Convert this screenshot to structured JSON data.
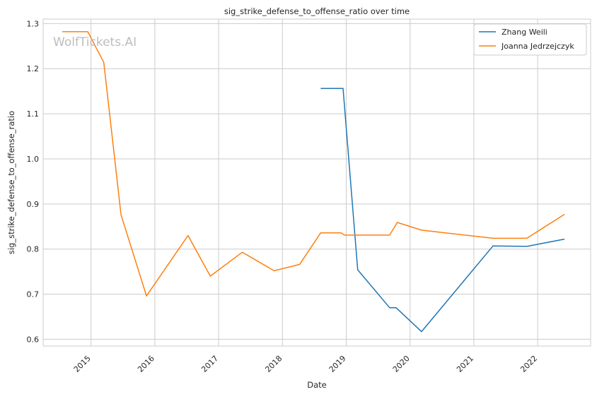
{
  "chart_data": {
    "type": "line",
    "title": "sig_strike_defense_to_offense_ratio over time",
    "xlabel": "Date",
    "ylabel": "sig_strike_defense_to_offense_ratio",
    "watermark": "WolfTickets.AI",
    "xlim": [
      2014.25,
      2022.83
    ],
    "ylim": [
      0.585,
      1.31
    ],
    "xticks": [
      2015,
      2016,
      2017,
      2018,
      2019,
      2020,
      2021,
      2022
    ],
    "yticks": [
      0.6,
      0.7,
      0.8,
      0.9,
      1.0,
      1.1,
      1.2,
      1.3
    ],
    "ytick_labels": [
      "0.6",
      "0.7",
      "0.8",
      "0.9",
      "1.0",
      "1.1",
      "1.2",
      "1.3"
    ],
    "grid": true,
    "legend_position": "top-right",
    "series": [
      {
        "name": "Zhang Weili",
        "color": "#1f77b4",
        "x": [
          2018.6,
          2018.95,
          2019.18,
          2019.68,
          2019.78,
          2020.18,
          2021.3,
          2021.83,
          2022.42
        ],
        "y": [
          1.156,
          1.156,
          0.754,
          0.67,
          0.67,
          0.617,
          0.807,
          0.806,
          0.822
        ]
      },
      {
        "name": "Joanna Jedrzejczyk",
        "color": "#ff7f0e",
        "x": [
          2014.55,
          2014.95,
          2015.2,
          2015.47,
          2015.87,
          2016.52,
          2016.87,
          2017.37,
          2017.87,
          2018.27,
          2018.6,
          2018.92,
          2018.97,
          2019.68,
          2019.8,
          2020.18,
          2021.3,
          2021.83,
          2022.42
        ],
        "y": [
          1.282,
          1.282,
          1.214,
          0.876,
          0.696,
          0.83,
          0.74,
          0.793,
          0.752,
          0.766,
          0.836,
          0.836,
          0.831,
          0.831,
          0.859,
          0.842,
          0.824,
          0.824,
          0.877
        ]
      }
    ]
  }
}
